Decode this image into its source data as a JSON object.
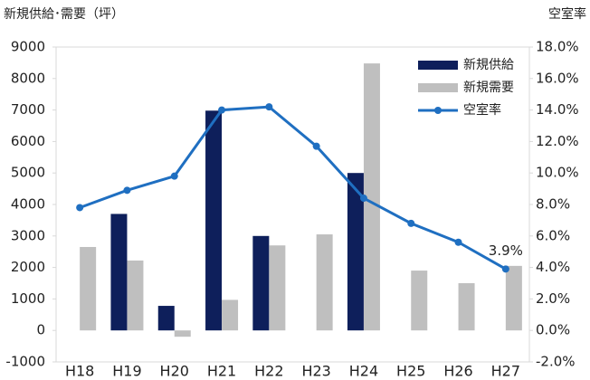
{
  "chart_data": {
    "type": "bar_line",
    "title_left": "新規供給･需要（坪）",
    "title_right": "空室率",
    "categories": [
      "H18",
      "H19",
      "H20",
      "H21",
      "H22",
      "H23",
      "H24",
      "H25",
      "H26",
      "H27"
    ],
    "series": [
      {
        "name": "新規供給",
        "color": "#0e1f5b",
        "type": "bar",
        "values": [
          0,
          3700,
          780,
          6980,
          3000,
          0,
          5000,
          0,
          0,
          0
        ]
      },
      {
        "name": "新規需要",
        "color": "#bfbfbf",
        "type": "bar",
        "values": [
          2650,
          2220,
          -200,
          970,
          2700,
          3050,
          8480,
          1900,
          1500,
          2050
        ]
      },
      {
        "name": "空室率",
        "color": "#1f6fc1",
        "type": "line",
        "axis": "y2",
        "values": [
          7.8,
          8.9,
          9.8,
          14.0,
          14.2,
          11.7,
          8.4,
          6.8,
          5.6,
          3.9
        ],
        "value_labels": [
          null,
          null,
          null,
          null,
          null,
          null,
          null,
          null,
          null,
          "3.9%"
        ]
      }
    ],
    "ylim": [
      -1000,
      9000
    ],
    "yticks": [
      -1000,
      0,
      1000,
      2000,
      3000,
      4000,
      5000,
      6000,
      7000,
      8000,
      9000
    ],
    "y2lim": [
      -2,
      18
    ],
    "y2ticks": [
      {
        "value": -2,
        "label": "-2.0%"
      },
      {
        "value": 0,
        "label": "0.0%"
      },
      {
        "value": 2,
        "label": "2.0%"
      },
      {
        "value": 4,
        "label": "4.0%"
      },
      {
        "value": 6,
        "label": "6.0%"
      },
      {
        "value": 8,
        "label": "8.0%"
      },
      {
        "value": 10,
        "label": "10.0%"
      },
      {
        "value": 12,
        "label": "12.0%"
      },
      {
        "value": 14,
        "label": "14.0%"
      },
      {
        "value": 16,
        "label": "16.0%"
      },
      {
        "value": 18,
        "label": "18.0%"
      }
    ],
    "legend": "upper right"
  }
}
